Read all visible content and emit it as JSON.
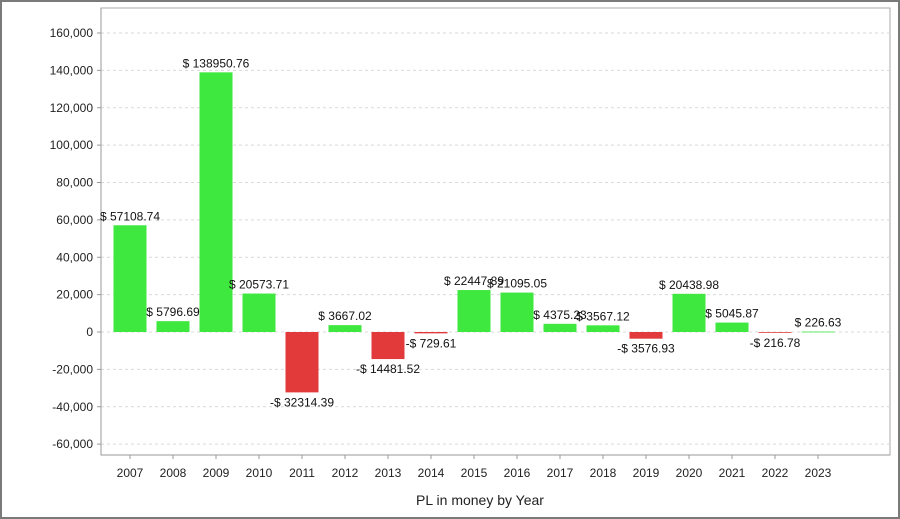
{
  "chart_data": {
    "type": "bar",
    "xlabel": "PL in money by Year",
    "ylabel": "",
    "ylim": [
      -65000,
      165000
    ],
    "yticks": [
      -60000,
      -40000,
      -20000,
      0,
      20000,
      40000,
      60000,
      80000,
      100000,
      120000,
      140000,
      160000
    ],
    "ytick_labels": [
      "-60,000",
      "-40,000",
      "-20,000",
      "0",
      "20,000",
      "40,000",
      "60,000",
      "80,000",
      "100,000",
      "120,000",
      "140,000",
      "160,000"
    ],
    "grid": true,
    "categories": [
      "2007",
      "2008",
      "2009",
      "2010",
      "2011",
      "2012",
      "2013",
      "2014",
      "2015",
      "2016",
      "2017",
      "2018",
      "2019",
      "2020",
      "2021",
      "2022",
      "2023"
    ],
    "values": [
      57108.74,
      5796.69,
      138950.76,
      20573.71,
      -32314.39,
      3667.02,
      -14481.52,
      -729.61,
      22447.89,
      21095.05,
      4375.23,
      3567.12,
      -3576.93,
      20438.98,
      5045.87,
      -216.78,
      226.63
    ],
    "data_labels": [
      "$ 57108.74",
      "$ 5796.69",
      "$ 138950.76",
      "$ 20573.71",
      "-$ 32314.39",
      "$ 3667.02",
      "-$ 14481.52",
      "-$ 729.61",
      "$ 22447.89",
      "$ 21095.05",
      "$ 4375.23",
      "$ 3567.12",
      "-$ 3576.93",
      "$ 20438.98",
      "$ 5045.87",
      "-$ 216.78",
      "$ 226.63"
    ],
    "colors": {
      "positive": "#3ee83e",
      "negative": "#e23a3a",
      "grid": "#d9d9d9",
      "axis": "#999999"
    }
  }
}
